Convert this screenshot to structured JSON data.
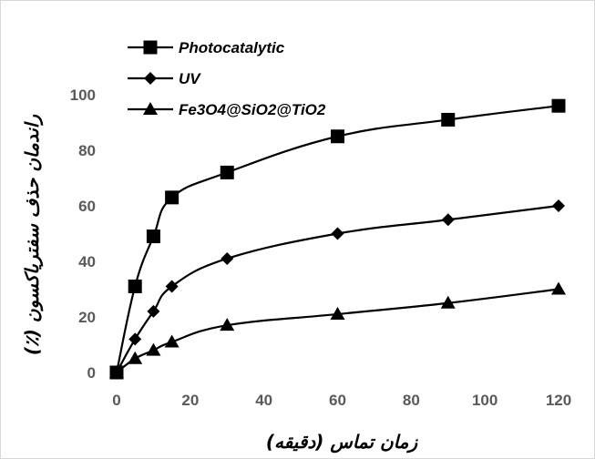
{
  "chart_data": {
    "type": "line",
    "xlabel": "زمان تماس (دقیقه)",
    "ylabel": "راندمان حذف سفتریاکسون (٪)",
    "xlim": [
      0,
      120
    ],
    "ylim": [
      0,
      100
    ],
    "xticks": [
      0,
      20,
      40,
      60,
      80,
      100,
      120
    ],
    "yticks": [
      0,
      20,
      40,
      60,
      80,
      100
    ],
    "grid": false,
    "legend_position": "top-left",
    "series": [
      {
        "name": "Photocatalytic",
        "marker": "square",
        "color": "#000000",
        "x": [
          0,
          5,
          10,
          15,
          30,
          60,
          90,
          120
        ],
        "y": [
          0,
          31,
          49,
          63,
          72,
          85,
          91,
          96
        ]
      },
      {
        "name": "UV",
        "marker": "diamond",
        "color": "#000000",
        "x": [
          0,
          5,
          10,
          15,
          30,
          60,
          90,
          120
        ],
        "y": [
          0,
          12,
          22,
          31,
          41,
          50,
          55,
          60
        ]
      },
      {
        "name": "Fe3O4@SiO2@TiO2",
        "marker": "triangle",
        "color": "#000000",
        "x": [
          0,
          5,
          10,
          15,
          30,
          60,
          90,
          120
        ],
        "y": [
          0,
          5,
          8,
          11,
          17,
          21,
          25,
          30
        ]
      }
    ]
  }
}
